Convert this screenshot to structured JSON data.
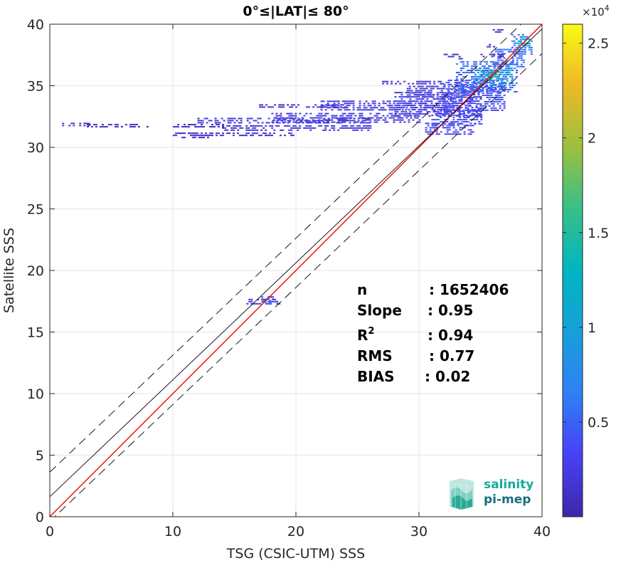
{
  "chart_data": {
    "type": "scatter",
    "title": "0°≤|LAT|≤ 80°",
    "xlabel": "TSG (CSIC-UTM) SSS",
    "ylabel": "Satellite SSS",
    "xlim": [
      0,
      40
    ],
    "ylim": [
      0,
      40
    ],
    "x_ticks": [
      "0",
      "10",
      "20",
      "30",
      "40"
    ],
    "y_ticks": [
      "0",
      "5",
      "10",
      "15",
      "20",
      "25",
      "30",
      "35",
      "40"
    ],
    "grid": true,
    "density_regions": [
      {
        "x": [
          1,
          3.5
        ],
        "y": [
          31.7,
          32.0
        ],
        "level": 0.08
      },
      {
        "x": [
          3,
          8
        ],
        "y": [
          31.7,
          31.9
        ],
        "level": 0.04
      },
      {
        "x": [
          10,
          14
        ],
        "y": [
          31.6,
          31.9
        ],
        "level": 0.05
      },
      {
        "x": [
          10,
          13
        ],
        "y": [
          30.8,
          31.2
        ],
        "level": 0.05
      },
      {
        "x": [
          10,
          20
        ],
        "y": [
          31.0,
          31.2
        ],
        "level": 0.06
      },
      {
        "x": [
          12,
          26
        ],
        "y": [
          31.9,
          32.4
        ],
        "level": 0.08
      },
      {
        "x": [
          14,
          26
        ],
        "y": [
          31.4,
          31.8
        ],
        "level": 0.07
      },
      {
        "x": [
          18,
          30
        ],
        "y": [
          32.0,
          32.8
        ],
        "level": 0.09
      },
      {
        "x": [
          22,
          33
        ],
        "y": [
          33.0,
          33.8
        ],
        "level": 0.09
      },
      {
        "x": [
          17,
          24
        ],
        "y": [
          33.2,
          33.5
        ],
        "level": 0.06
      },
      {
        "x": [
          28,
          35
        ],
        "y": [
          32.5,
          34.5
        ],
        "level": 0.1
      },
      {
        "x": [
          27,
          32
        ],
        "y": [
          35.2,
          35.4
        ],
        "level": 0.06
      },
      {
        "x": [
          29,
          34
        ],
        "y": [
          34.0,
          35.0
        ],
        "level": 0.08
      },
      {
        "x": [
          30.5,
          34.5
        ],
        "y": [
          31.0,
          32.0
        ],
        "level": 0.12
      },
      {
        "x": [
          31,
          35
        ],
        "y": [
          31.8,
          33.0
        ],
        "level": 0.14
      },
      {
        "x": [
          32,
          37
        ],
        "y": [
          33.0,
          35.5
        ],
        "level": 0.15
      },
      {
        "x": [
          33,
          38
        ],
        "y": [
          34.5,
          37.0
        ],
        "level": 0.2
      },
      {
        "x": [
          34.5,
          37.5
        ],
        "y": [
          35.0,
          36.5
        ],
        "level": 0.35
      },
      {
        "x": [
          35,
          36.5
        ],
        "y": [
          35.5,
          36.2
        ],
        "level": 0.55
      },
      {
        "x": [
          36,
          38.5
        ],
        "y": [
          36.5,
          38.0
        ],
        "level": 0.2
      },
      {
        "x": [
          37.5,
          39.2
        ],
        "y": [
          37.5,
          39.2
        ],
        "level": 0.25
      },
      {
        "x": [
          38.2,
          39
        ],
        "y": [
          38.3,
          39.0
        ],
        "level": 0.4
      },
      {
        "x": [
          35,
          36.8
        ],
        "y": [
          37.3,
          37.6
        ],
        "level": 0.06
      },
      {
        "x": [
          32,
          33.5
        ],
        "y": [
          37.2,
          37.6
        ],
        "level": 0.05
      },
      {
        "x": [
          35.5,
          36.5
        ],
        "y": [
          38.2,
          38.4
        ],
        "level": 0.05
      },
      {
        "x": [
          36,
          37
        ],
        "y": [
          39.3,
          39.6
        ],
        "level": 0.05
      },
      {
        "x": [
          15.8,
          18.6
        ],
        "y": [
          17.3,
          17.7
        ],
        "level": 0.08
      },
      {
        "x": [
          17,
          18.2
        ],
        "y": [
          17.6,
          17.9
        ],
        "level": 0.1
      },
      {
        "x": [
          17.3,
          18.0
        ],
        "y": [
          17.3,
          17.6
        ],
        "level": 0.25
      }
    ],
    "lines": [
      {
        "name": "one-to-one",
        "color": "#ff0000",
        "slope": 1,
        "intercept": 0
      },
      {
        "name": "regression",
        "color": "#000000",
        "slope": 0.95,
        "intercept": 1.62
      },
      {
        "name": "upper-bound",
        "color": "#000000",
        "dashed": true,
        "slope": 0.95,
        "intercept": 3.62
      },
      {
        "name": "lower-bound",
        "color": "#000000",
        "dashed": true,
        "slope": 0.95,
        "intercept": -0.38
      }
    ],
    "colorbar": {
      "min": 0,
      "max": 2.6,
      "ticks": [
        "0.5",
        "1",
        "1.5",
        "2",
        "2.5"
      ],
      "tick_values": [
        0.5,
        1,
        1.5,
        2,
        2.5
      ],
      "exponent_base": "×10",
      "exponent": "4",
      "colormap": "parula"
    },
    "stats": [
      {
        "label": "n",
        "value": ": 1652406"
      },
      {
        "label": "Slope",
        "value": ": 0.95"
      },
      {
        "label": "R",
        "sup": "2",
        "value": ": 0.94"
      },
      {
        "label": "RMS",
        "value": ": 0.77"
      },
      {
        "label": "BIAS",
        "value": ": 0.02"
      }
    ],
    "logo": {
      "line1": "salinity",
      "line2": "pi-mep",
      "color": "#1aa79a"
    }
  }
}
